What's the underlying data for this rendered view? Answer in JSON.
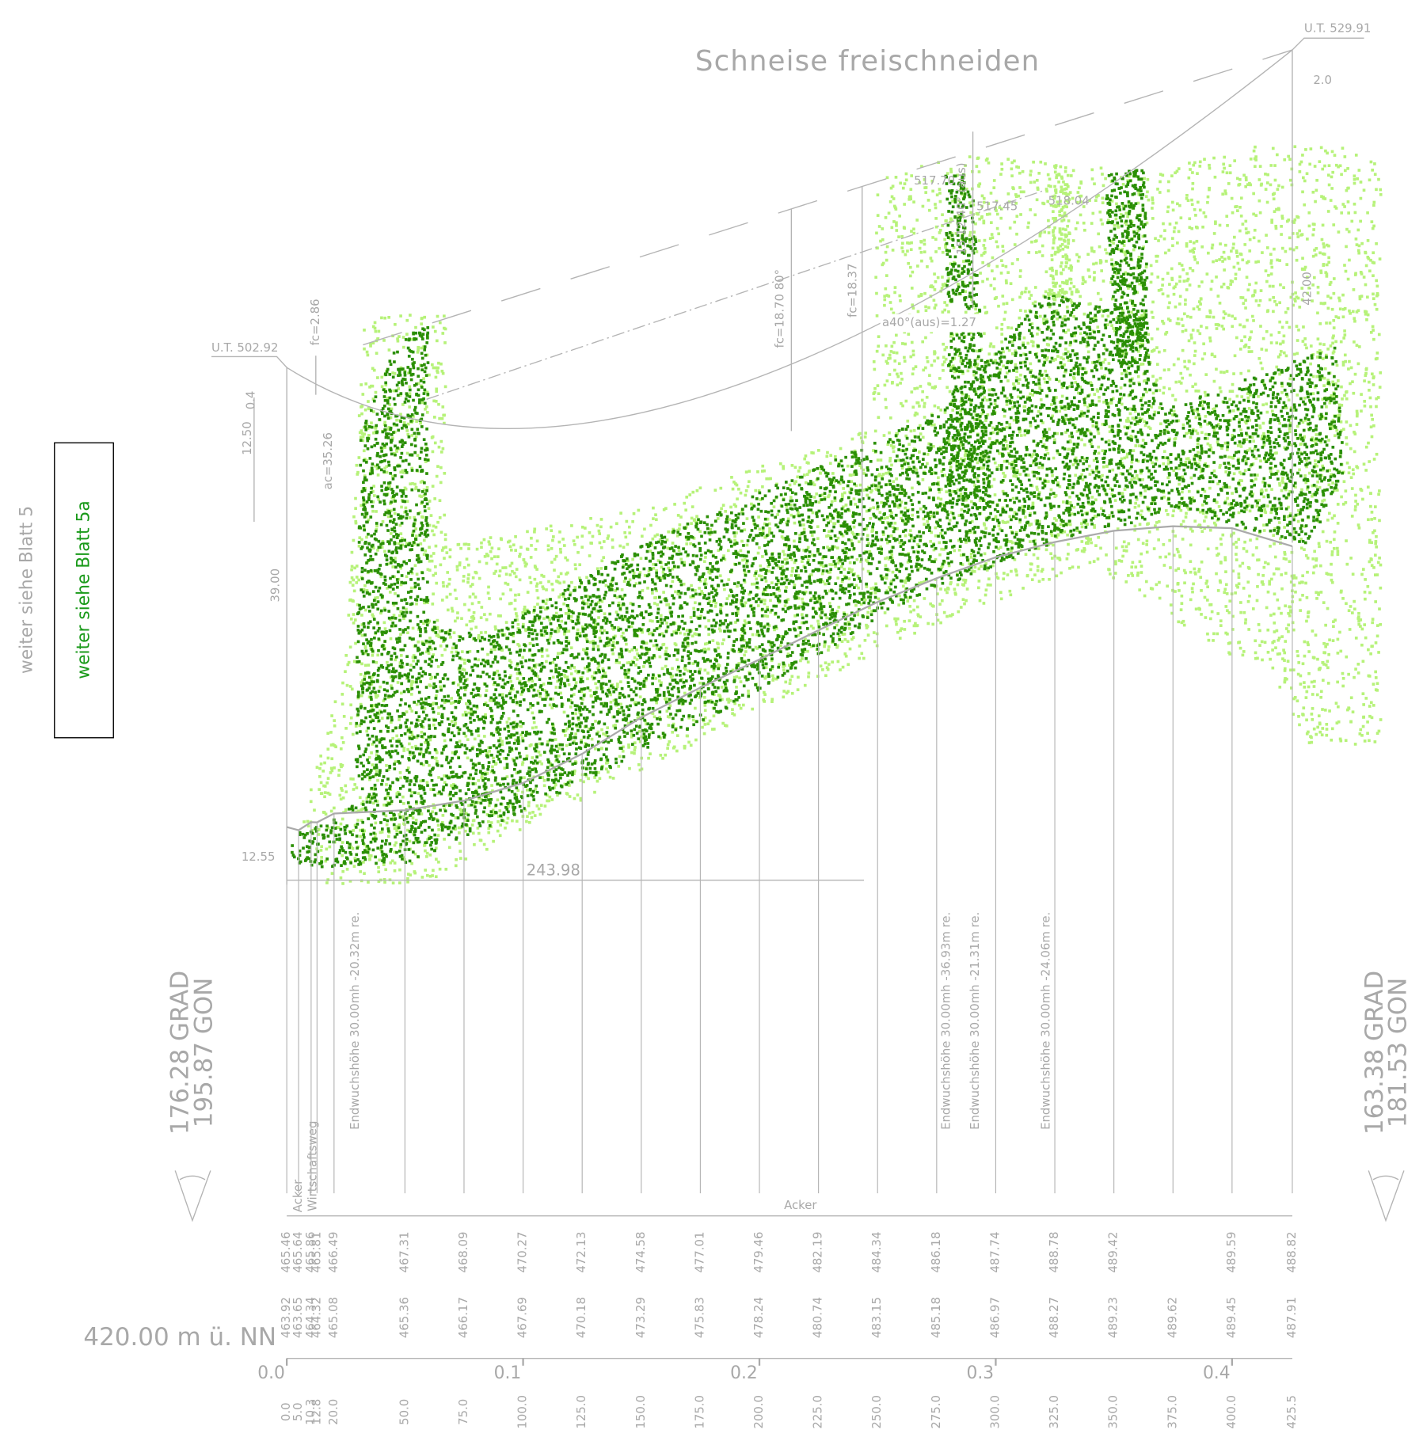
{
  "title": "Schneise freischneiden",
  "side_notes": {
    "left": "weiter siehe Blatt 5",
    "left_boxed": "weiter siehe Blatt 5a"
  },
  "annotations": [
    "U.T. 502.92",
    "U.T. 529.91",
    "2.0",
    "fc=2.86",
    "12.50",
    "0.4",
    "39.00",
    "ac=35.26",
    "fc=18.70  80°",
    "fc=18.37",
    "517.70",
    "15.12 40° (aus)",
    "517.45",
    "518.04",
    "a40°(aus)=1.27",
    "42.00",
    "12.55",
    "243.98"
  ],
  "growth_notes": [
    "Endwuchshöhe 30.00mh -20.32m re.",
    "Endwuchshöhe 30.00mh -36.93m re.",
    "Endwuchshöhe 30.00mh -21.31m re.",
    "Endwuchshöhe 30.00mh -24.06m re."
  ],
  "land_use": [
    "Acker",
    "Wirtschaftsweg",
    "Acker"
  ],
  "angles": {
    "left": [
      "176.28 GRAD",
      "195.87 GON"
    ],
    "right": [
      "163.38 GRAD",
      "181.53 GON"
    ]
  },
  "datum": "420.00 m ü. NN",
  "stations": {
    "distance": [
      {
        "value": 0,
        "label": "0.0"
      },
      {
        "value": 5,
        "label": "5.0"
      },
      10.3,
      12.8,
      {
        "value": 20,
        "label": "20.0"
      },
      {
        "value": 50,
        "label": "50.0"
      },
      {
        "value": 75,
        "label": "75.0"
      },
      {
        "value": 100,
        "label": "100.0"
      },
      {
        "value": 125,
        "label": "125.0"
      },
      {
        "value": 150,
        "label": "150.0"
      },
      {
        "value": 175,
        "label": "175.0"
      },
      {
        "value": 200,
        "label": "200.0"
      },
      {
        "value": 225,
        "label": "225.0"
      },
      {
        "value": 250,
        "label": "250.0"
      },
      {
        "value": 275,
        "label": "275.0"
      },
      {
        "value": 300,
        "label": "300.0"
      },
      {
        "value": 325,
        "label": "325.0"
      },
      {
        "value": 350,
        "label": "350.0"
      },
      {
        "value": 375,
        "label": "375.0"
      },
      {
        "value": 400,
        "label": "400.0"
      },
      425.5
    ],
    "top": [
      465.46,
      465.64,
      465.86,
      465.81,
      466.49,
      467.31,
      468.09,
      470.27,
      472.13,
      474.58,
      477.01,
      479.46,
      482.19,
      484.34,
      486.18,
      487.74,
      488.78,
      489.42,
      null,
      489.59,
      488.82
    ],
    "ground": [
      463.92,
      463.65,
      464.34,
      464.32,
      465.08,
      465.36,
      466.17,
      467.69,
      470.18,
      473.29,
      475.83,
      478.24,
      480.74,
      483.15,
      485.18,
      486.97,
      488.27,
      489.23,
      489.62,
      489.45,
      487.91
    ]
  },
  "km_axis": {
    "ticks": [
      {
        "value": 0,
        "label": "0.0"
      },
      0.1,
      0.2,
      0.3,
      0.4
    ]
  }
}
